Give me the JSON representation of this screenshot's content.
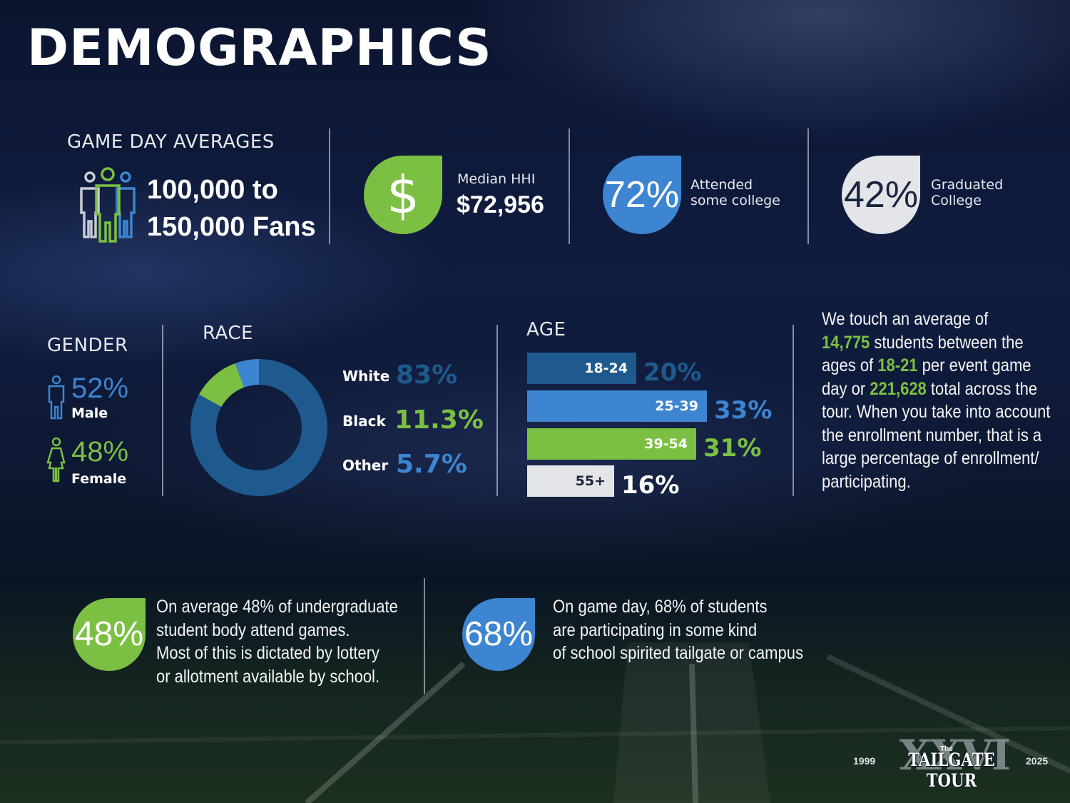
{
  "title": "DEMOGRAPHICS",
  "game_day": {
    "heading": "GAME DAY AVERAGES",
    "line1": "100,000 to",
    "line2": "150,000 Fans",
    "icon": "fans-group-icon"
  },
  "median_hhi": {
    "label": "Median HHI",
    "value": "$72,956",
    "symbol": "$",
    "icon": "dollar-icon",
    "color": "#7cc043"
  },
  "some_college": {
    "value": "72%",
    "label_line1": "Attended",
    "label_line2": "some college",
    "color": "#3d85d0"
  },
  "graduated": {
    "value": "42%",
    "label_line1": "Graduated",
    "label_line2": "College",
    "color": "#e3e5e8"
  },
  "gender": {
    "heading": "GENDER",
    "male": {
      "value": "52%",
      "label": "Male",
      "icon": "male-icon"
    },
    "female": {
      "value": "48%",
      "label": "Female",
      "icon": "female-icon"
    }
  },
  "race": {
    "heading": "RACE",
    "items": [
      {
        "label": "White",
        "value": "83%",
        "color": "#1f5a8f"
      },
      {
        "label": "Black",
        "value": "11.3%",
        "color": "#7cc043"
      },
      {
        "label": "Other",
        "value": "5.7%",
        "color": "#3d85d0"
      }
    ]
  },
  "age": {
    "heading": "AGE",
    "bars": [
      {
        "label": "18-24",
        "value": "20%",
        "pct": 20,
        "color": "#1f5a8f",
        "text_color": "#ffffff",
        "value_color": "#1f5a8f"
      },
      {
        "label": "25-39",
        "value": "33%",
        "pct": 33,
        "color": "#3d85d0",
        "text_color": "#ffffff",
        "value_color": "#3d85d0"
      },
      {
        "label": "39-54",
        "value": "31%",
        "pct": 31,
        "color": "#7cc043",
        "text_color": "#ffffff",
        "value_color": "#7cc043"
      },
      {
        "label": "55+",
        "value": "16%",
        "pct": 16,
        "color": "#e3e5e8",
        "text_color": "#1a2440",
        "value_color": "#ffffff"
      }
    ]
  },
  "students_text": {
    "t1": "We touch an average of",
    "h1": "14,775",
    "t2": " students between the ages of ",
    "h2": "18-21",
    "t3": " per event game day or ",
    "h3": "221,628",
    "t4": " total across the tour. When you take into account the enrollment number, that is a large percentage of enrollment/ participating."
  },
  "undergrad": {
    "value": "48%",
    "line1": "On average 48% of undergraduate",
    "line2": "student body attend games.",
    "line3": "Most of this is dictated by lottery",
    "line4": "or allotment available by school.",
    "color": "#7cc043"
  },
  "tailgate_participation": {
    "value": "68%",
    "line1": "On game day, 68% of students",
    "line2": "are participating in some kind",
    "line3": "of school spirited tailgate or campus",
    "color": "#3d85d0"
  },
  "logo": {
    "year_start": "1999",
    "year_end": "2025",
    "the": "The",
    "name": "TAILGATE TOUR",
    "roman": "XXVI"
  }
}
